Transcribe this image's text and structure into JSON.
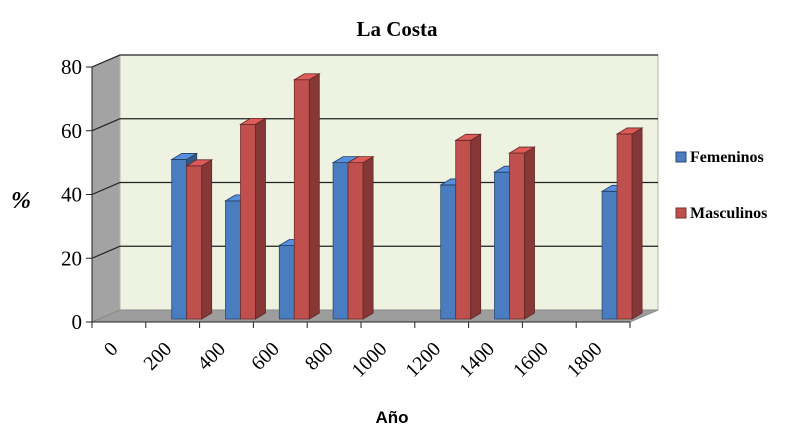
{
  "chart_data": {
    "type": "bar",
    "title": "La Costa",
    "xlabel": "Año",
    "ylabel": "%",
    "ylim": [
      0,
      80
    ],
    "y_ticks": [
      "0",
      "20",
      "40",
      "60",
      "80"
    ],
    "categories": [
      "0",
      "200",
      "400",
      "600",
      "800",
      "1000",
      "1200",
      "1400",
      "1600",
      "1800"
    ],
    "series": [
      {
        "name": "Femeninos",
        "color": "#4a7cc0",
        "values": [
          null,
          51,
          38,
          24,
          50,
          null,
          43,
          47,
          null,
          41
        ]
      },
      {
        "name": "Masculinos",
        "color": "#c0504d",
        "values": [
          null,
          49,
          62,
          76,
          50,
          null,
          57,
          53,
          null,
          59
        ]
      }
    ],
    "grid": true,
    "legend": "right",
    "style": "3d-clustered-column"
  }
}
